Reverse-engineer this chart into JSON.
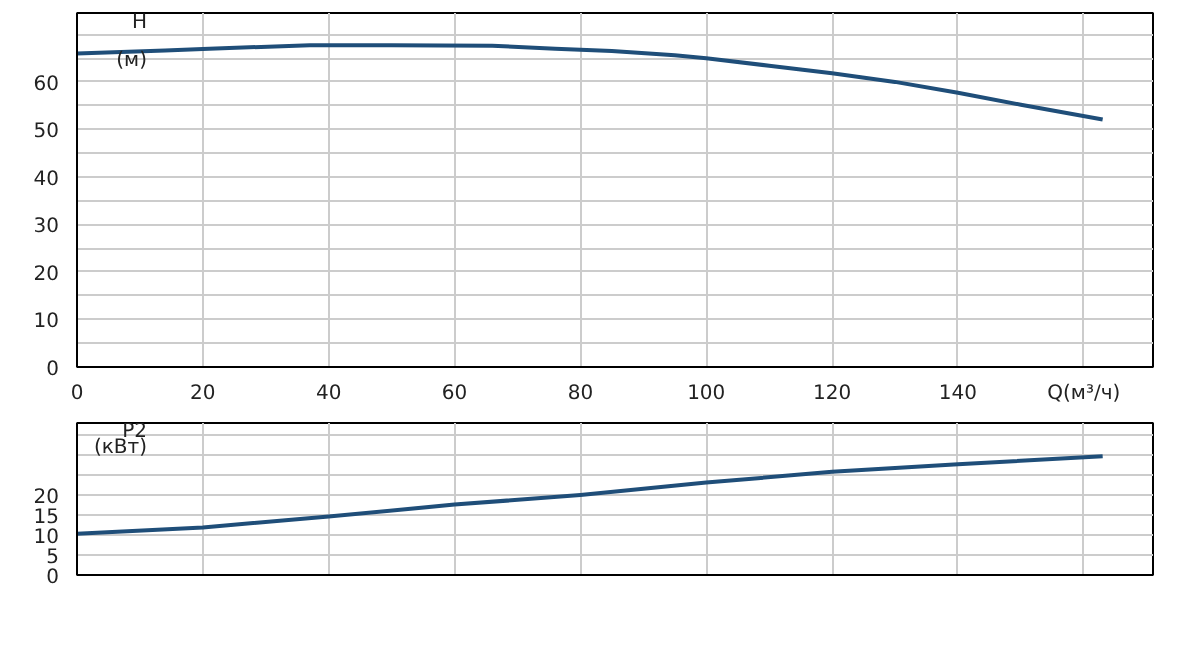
{
  "chart_data": [
    {
      "type": "line",
      "ylabel": "H\n(м)",
      "x": [
        0,
        7,
        14,
        21,
        37,
        50,
        66,
        76,
        85,
        95,
        100,
        110,
        120,
        130,
        140,
        150,
        163
      ],
      "series": [
        {
          "color": "#1f4e79",
          "values": [
            66,
            66.3,
            66.6,
            67,
            67.7,
            67.7,
            67.6,
            67,
            66.5,
            65.6,
            65,
            63.4,
            61.8,
            60,
            57.7,
            55.2,
            52.1
          ]
        }
      ],
      "xlim": [
        0,
        171
      ],
      "xticks": [
        0,
        20,
        40,
        60,
        80,
        100,
        120,
        140,
        {
          "value": 160,
          "label": "Q(м³/ч)"
        }
      ],
      "ylim": [
        0,
        74.5
      ],
      "yticks": [
        0,
        {
          "value": 5,
          "label": null
        },
        10,
        {
          "value": 15,
          "label": null
        },
        20,
        {
          "value": 25,
          "label": null
        },
        30,
        {
          "value": 35,
          "label": null
        },
        40,
        {
          "value": 45,
          "label": null
        },
        50,
        {
          "value": 55,
          "label": null
        },
        60,
        {
          "value": 65,
          "label": null
        },
        {
          "value": 70,
          "label": null
        }
      ],
      "grid": true,
      "marker": "none",
      "line_style": "solid"
    },
    {
      "type": "line",
      "ylabel": "P2\n(кВт)",
      "x": [
        0,
        20,
        40,
        60,
        80,
        100,
        120,
        140,
        163
      ],
      "series": [
        {
          "color": "#1f4e79",
          "values": [
            10.3,
            11.9,
            14.6,
            17.6,
            20,
            23.1,
            25.8,
            27.7,
            29.7
          ]
        }
      ],
      "xlim": [
        0,
        171
      ],
      "xticks": [
        0,
        20,
        40,
        60,
        80,
        100,
        120,
        140,
        160
      ],
      "ylim": [
        0,
        38
      ],
      "yticks": [
        0,
        5,
        10,
        15,
        20,
        {
          "value": 25,
          "label": null
        },
        {
          "value": 30,
          "label": null
        },
        {
          "value": 35,
          "label": null
        }
      ],
      "grid": true,
      "marker": "none",
      "line_style": "solid",
      "tick_labels": "y"
    }
  ]
}
